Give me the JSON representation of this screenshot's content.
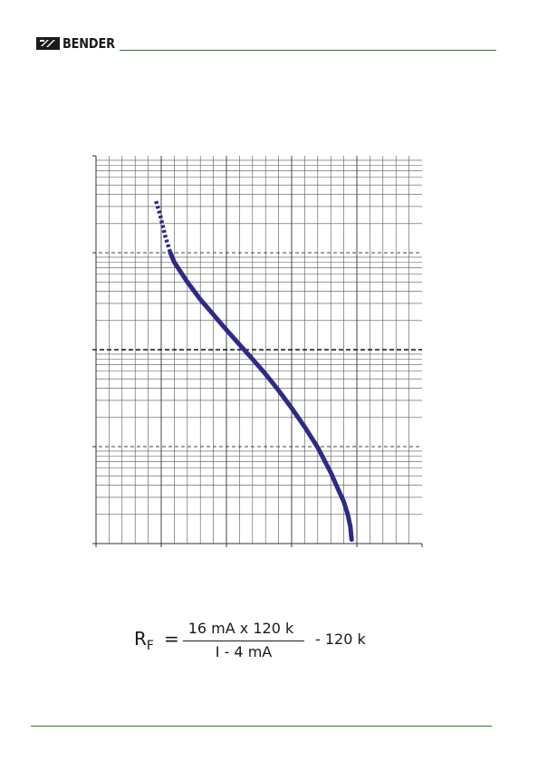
{
  "header": {
    "brand": "BENDER",
    "logo_icon": "bender-logo-icon",
    "rule_color": "#2b7a2b"
  },
  "chart_data": {
    "type": "line",
    "title": "",
    "xlabel": "",
    "ylabel": "",
    "xlim": [
      0,
      25
    ],
    "yscale": "log",
    "ylim": [
      1,
      10000
    ],
    "x_major_ticks": [
      0,
      5,
      10,
      15,
      20,
      25
    ],
    "y_major_ticks": [
      1,
      10,
      100,
      1000,
      10000
    ],
    "grid": true,
    "series": [
      {
        "name": "",
        "color": "#2e2a85",
        "dashed_segment": {
          "x": [
            4.6,
            4.9,
            5.3,
            5.7
          ],
          "y": [
            3400,
            2500,
            1500,
            1000
          ]
        },
        "solid_segment": {
          "x": [
            5.7,
            6.0,
            7.0,
            8.0,
            9.0,
            10.0,
            11.0,
            12.0,
            13.0,
            14.0,
            15.0,
            16.0,
            17.0,
            18.0,
            18.5,
            19.0,
            19.3,
            19.5,
            19.6
          ],
          "y": [
            1000,
            800,
            500,
            330,
            230,
            160,
            113,
            80,
            56,
            38,
            25,
            16,
            9.8,
            5.4,
            3.8,
            2.7,
            2.0,
            1.5,
            1.1
          ]
        }
      }
    ]
  },
  "formula": {
    "lhs": "R",
    "lhs_sub": "F",
    "eq": "=",
    "numerator": "16 mA x 120 k",
    "denominator": "I - 4 mA",
    "tail": "- 120 k"
  },
  "footer": {
    "rule_color": "#2b7a2b"
  }
}
